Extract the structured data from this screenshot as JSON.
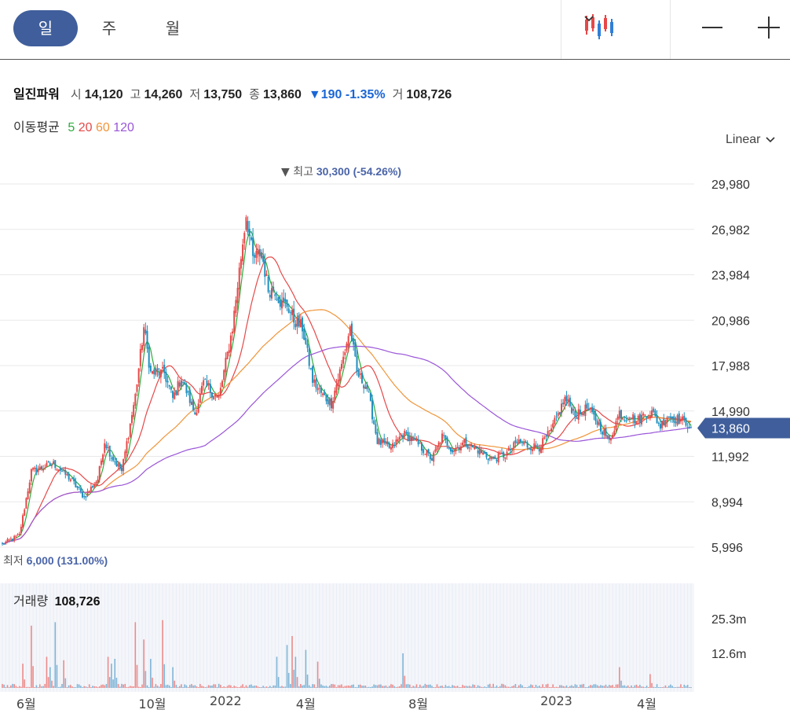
{
  "toolbar": {
    "periods": [
      {
        "label": "일",
        "active": true
      },
      {
        "label": "주",
        "active": false
      },
      {
        "label": "월",
        "active": false
      }
    ],
    "chart_type_icon": "candlestick-icon",
    "dropdown_icon": "chevron-down-icon",
    "zoom_out_icon": "minus-icon",
    "zoom_in_icon": "plus-icon"
  },
  "info": {
    "name": "일진파워",
    "open_label": "시",
    "open": "14,120",
    "high_label": "고",
    "high": "14,260",
    "low_label": "저",
    "low": "13,750",
    "close_label": "종",
    "close": "13,860",
    "change_arrow": "▼",
    "change": "190",
    "change_pct": "-1.35%",
    "volume_label": "거",
    "volume": "108,726"
  },
  "moving_average": {
    "label": "이동평균",
    "periods": [
      {
        "label": "5",
        "color": "#2eaa3c"
      },
      {
        "label": "20",
        "color": "#e64848"
      },
      {
        "label": "60",
        "color": "#f0953a"
      },
      {
        "label": "120",
        "color": "#9a55d8"
      }
    ]
  },
  "scale": {
    "label": "Linear"
  },
  "volume_panel": {
    "label": "거래량",
    "value": "108,726"
  },
  "colors": {
    "up": "#e64848",
    "down": "#1f8fbf",
    "accent": "#3f5e9b",
    "annotation": "#4a64a8"
  },
  "chart_data": {
    "type": "candlestick",
    "price_axis": {
      "ticks": [
        "29,980",
        "26,982",
        "23,984",
        "20,986",
        "17,988",
        "14,990",
        "11,992",
        "8,994",
        "5,996"
      ],
      "ylim": [
        5500,
        31200
      ]
    },
    "current_price": {
      "label": "13,860",
      "value": 13860
    },
    "annotations": {
      "high": {
        "marker": "▼",
        "label": "최고",
        "value": "30,300",
        "pct": "(-54.26%)"
      },
      "low": {
        "label": "최저",
        "value": "6,000",
        "pct": "(131.00%)"
      }
    },
    "volume_axis": {
      "ticks": [
        "25.3m",
        "12.6m"
      ]
    },
    "x_ticks": [
      {
        "label": "6월",
        "index": 2
      },
      {
        "label": "10월",
        "index": 76
      },
      {
        "label": "2022",
        "index": 119
      },
      {
        "label": "4월",
        "index": 166
      },
      {
        "label": "8월",
        "index": 232
      },
      {
        "label": "2023",
        "index": 313
      },
      {
        "label": "4월",
        "index": 366
      }
    ],
    "num_bars": 405,
    "price_path_x": [
      0,
      10,
      17,
      30,
      40,
      48,
      56,
      60,
      64,
      70,
      78,
      83,
      87,
      95,
      100,
      105,
      113,
      118,
      127,
      135,
      143,
      147,
      152,
      156,
      160,
      164,
      167,
      171,
      176,
      182,
      188,
      193,
      199,
      204,
      208,
      214,
      220,
      228,
      235,
      242,
      248,
      252,
      258,
      264,
      271,
      279,
      287,
      295,
      303,
      308,
      315,
      322,
      330,
      337,
      343,
      350,
      356,
      362,
      365,
      368,
      372,
      377,
      381,
      386,
      390,
      394,
      398,
      403,
      404
    ],
    "price_path_y": [
      6200,
      6800,
      11000,
      11500,
      10500,
      9300,
      10500,
      13000,
      12000,
      11000,
      16000,
      20500,
      17500,
      17500,
      15800,
      17200,
      14800,
      16800,
      15800,
      20500,
      28000,
      25000,
      25500,
      23000,
      23000,
      22000,
      22000,
      21000,
      20500,
      17000,
      16000,
      15500,
      18000,
      20500,
      17500,
      16500,
      13000,
      12500,
      13500,
      13000,
      12300,
      11800,
      13300,
      12400,
      12900,
      12400,
      11800,
      12100,
      13000,
      12700,
      12600,
      13700,
      15800,
      14700,
      15200,
      14100,
      13000,
      14900,
      14500,
      14800,
      14300,
      14800,
      14900,
      14000,
      14700,
      14500,
      14400,
      14100,
      13860
    ],
    "volume_spikes": [
      [
        12,
        0.35
      ],
      [
        17,
        0.9
      ],
      [
        26,
        0.45
      ],
      [
        28,
        0.3
      ],
      [
        31,
        0.95
      ],
      [
        36,
        0.4
      ],
      [
        62,
        0.45
      ],
      [
        64,
        0.35
      ],
      [
        66,
        0.42
      ],
      [
        78,
        0.95
      ],
      [
        83,
        0.7
      ],
      [
        87,
        0.42
      ],
      [
        94,
        0.98
      ],
      [
        100,
        0.3
      ],
      [
        161,
        0.45
      ],
      [
        167,
        0.62
      ],
      [
        170,
        0.75
      ],
      [
        172,
        0.45
      ],
      [
        178,
        0.55
      ],
      [
        185,
        0.38
      ],
      [
        235,
        0.5
      ],
      [
        362,
        0.3
      ],
      [
        380,
        0.2
      ]
    ]
  }
}
